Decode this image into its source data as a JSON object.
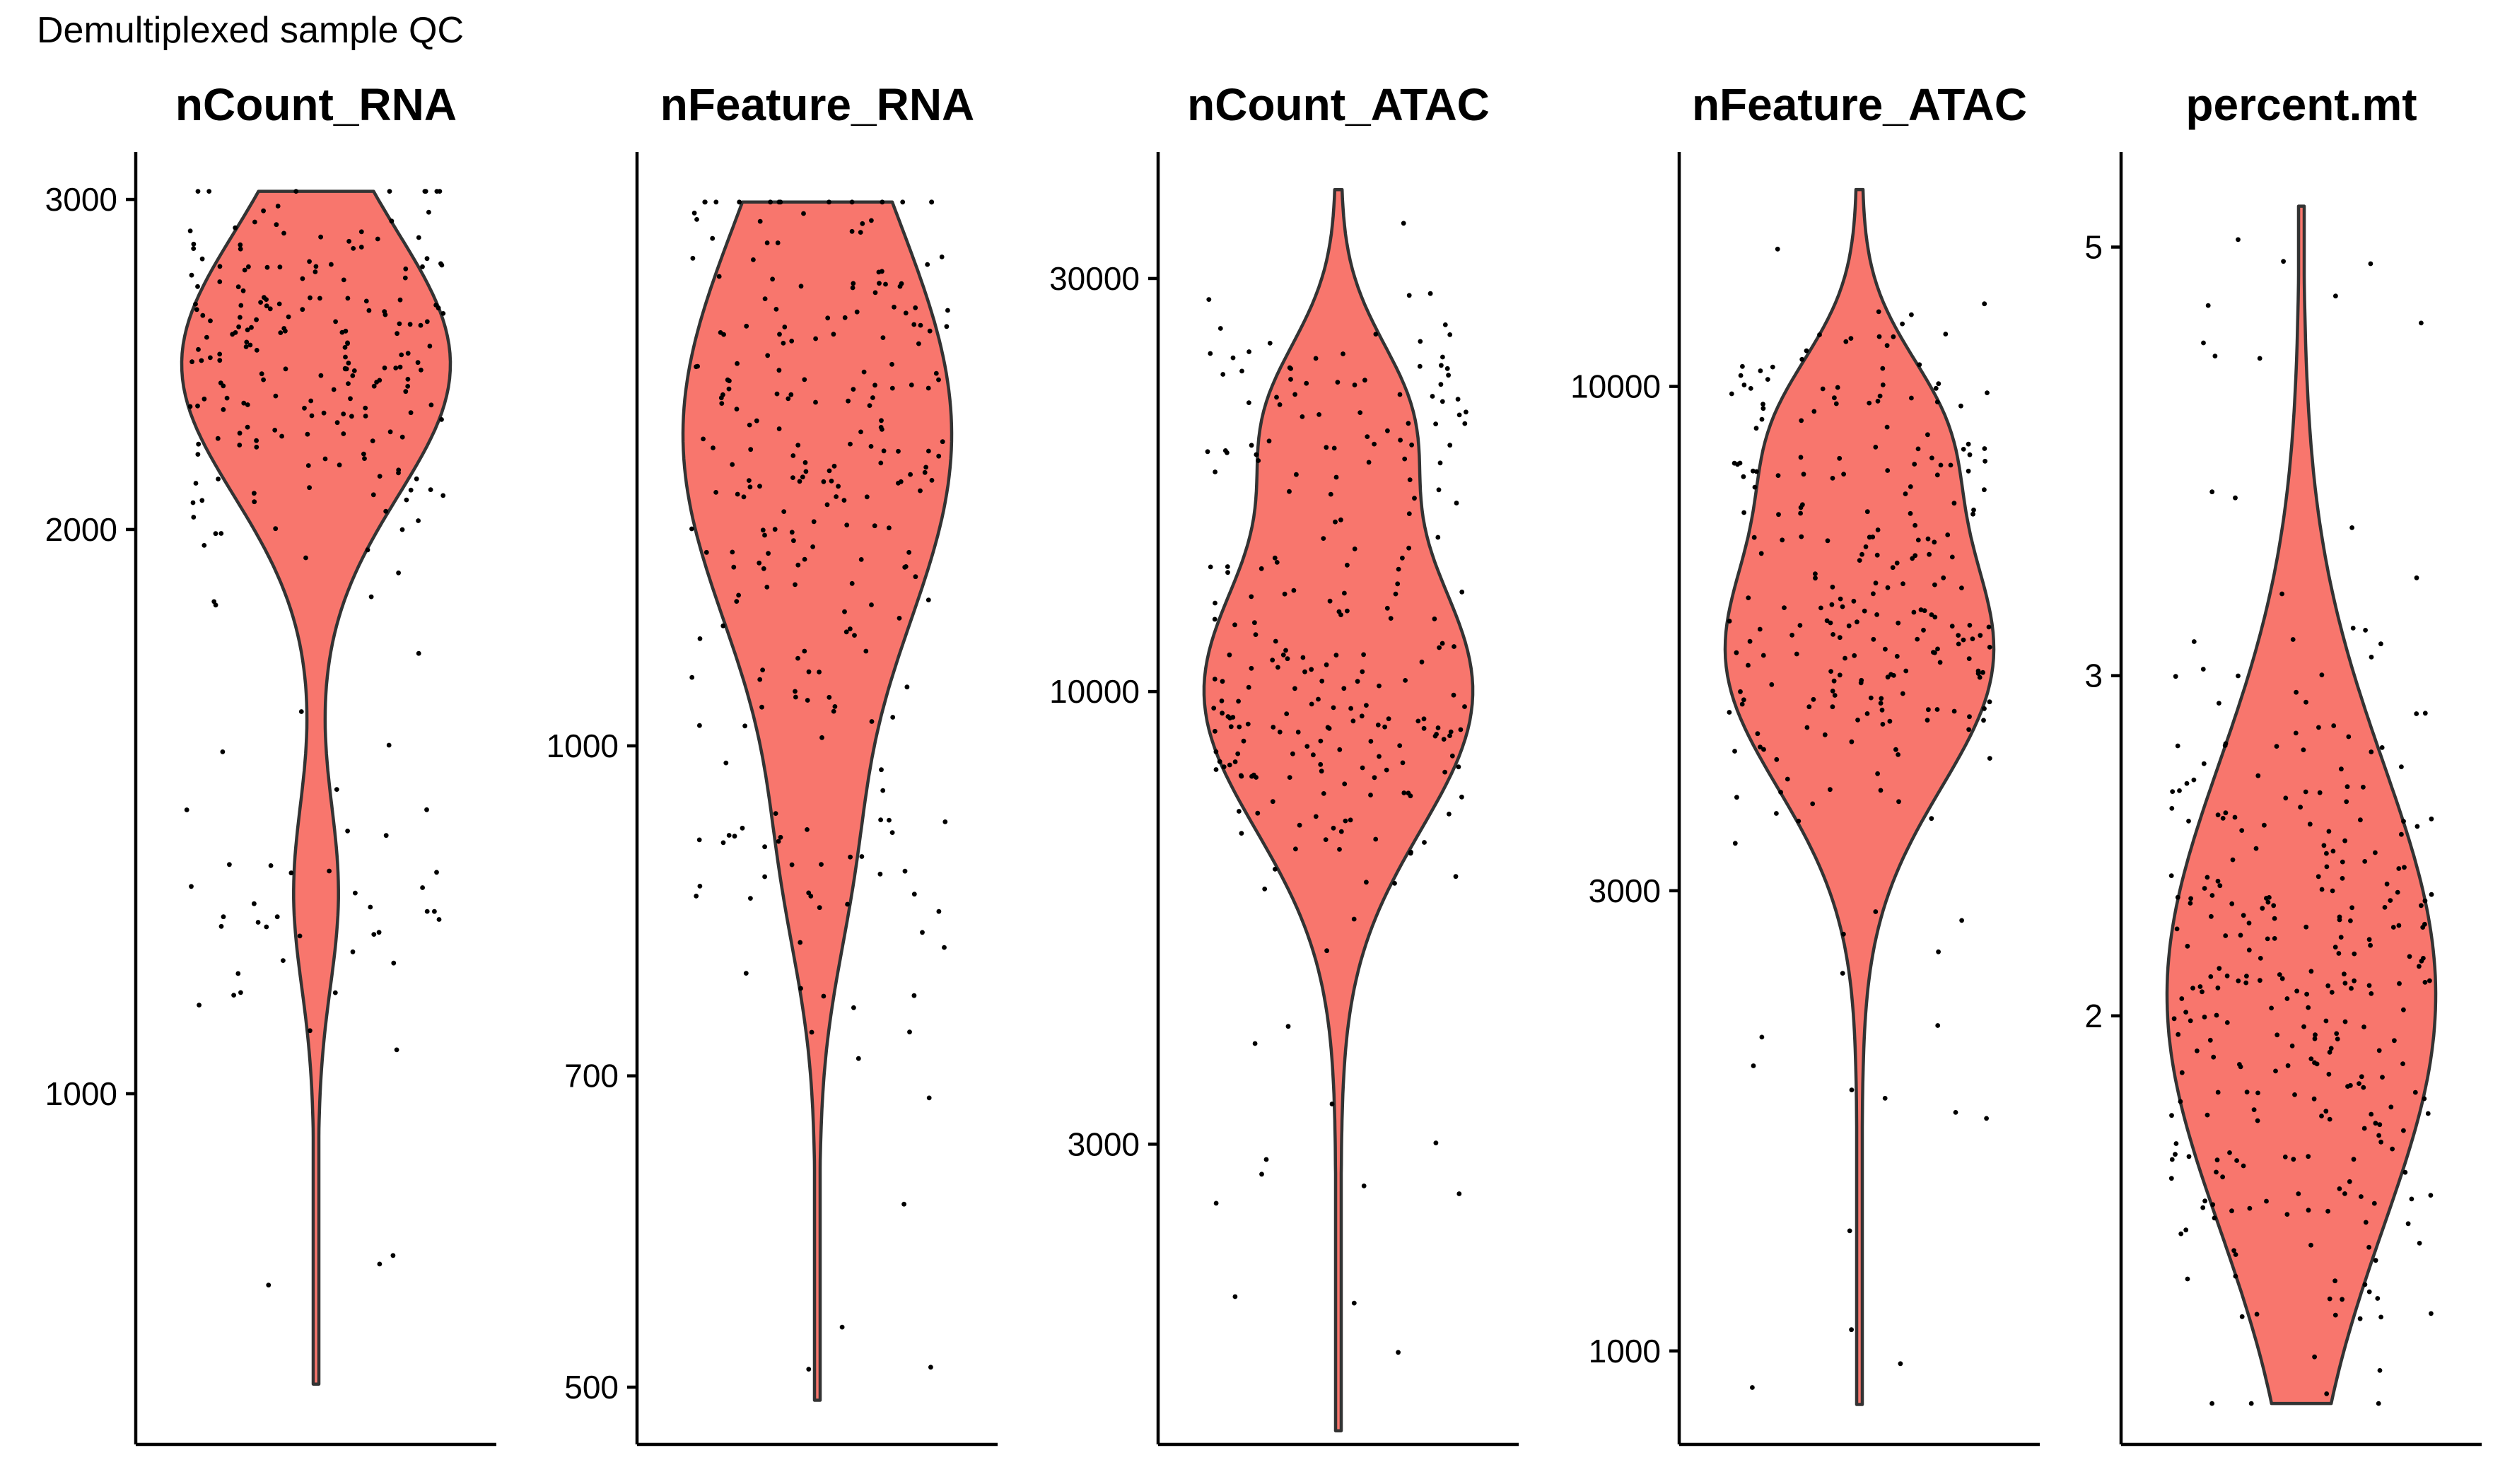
{
  "figure": {
    "title": "Demultiplexed sample QC",
    "violin_fill": "#F8766D",
    "violin_outline": "#333333",
    "point_color": "#000000"
  },
  "chart_data": [
    {
      "type": "violin",
      "title": "nCount_RNA",
      "scale": "log10",
      "ylim": [
        650,
        3180
      ],
      "data_range": [
        700,
        3030
      ],
      "yticks": [
        1000,
        2000,
        3000
      ],
      "ytick_labels": [
        "1000",
        "2000",
        "3000"
      ],
      "n_points": 250,
      "density_modes": [
        {
          "center": 2450,
          "weight": 0.78,
          "spread": 0.07
        }
      ],
      "tail_bulge": {
        "center": 1280,
        "weight": 0.12
      }
    },
    {
      "type": "violin",
      "title": "nFeature_RNA",
      "scale": "log10",
      "ylim": [
        470,
        1900
      ],
      "data_range": [
        493,
        1800
      ],
      "yticks": [
        500,
        700,
        1000
      ],
      "ytick_labels": [
        "500",
        "700",
        "1000"
      ],
      "n_points": 250,
      "density_modes": [
        {
          "center": 1400,
          "weight": 0.8,
          "spread": 0.1
        }
      ],
      "tail_bulge": {
        "center": 870,
        "weight": 0.12
      }
    },
    {
      "type": "violin",
      "title": "nCount_ATAC",
      "scale": "log10",
      "ylim": [
        1350,
        42000
      ],
      "data_range": [
        1400,
        38000
      ],
      "yticks": [
        3000,
        10000,
        30000
      ],
      "ytick_labels": [
        "3000",
        "10000",
        "30000"
      ],
      "n_points": 250,
      "density_modes": [
        {
          "center": 10000,
          "weight": 0.62,
          "spread": 0.16
        },
        {
          "center": 21000,
          "weight": 0.26,
          "spread": 0.09
        }
      ],
      "tail_bulge": null
    },
    {
      "type": "violin",
      "title": "nFeature_ATAC",
      "scale": "log10",
      "ylim": [
        800,
        17500
      ],
      "data_range": [
        880,
        16000
      ],
      "yticks": [
        1000,
        3000,
        10000
      ],
      "ytick_labels": [
        "1000",
        "3000",
        "10000"
      ],
      "n_points": 250,
      "density_modes": [
        {
          "center": 5300,
          "weight": 0.62,
          "spread": 0.14
        },
        {
          "center": 9200,
          "weight": 0.26,
          "spread": 0.08
        }
      ],
      "tail_bulge": null
    },
    {
      "type": "violin",
      "title": "percent.mt",
      "scale": "log10",
      "ylim": [
        1.2,
        5.6
      ],
      "data_range": [
        1.26,
        5.25
      ],
      "yticks": [
        2,
        3,
        5
      ],
      "ytick_labels": [
        "2",
        "3",
        "5"
      ],
      "n_points": 300,
      "density_modes": [
        {
          "center": 2.05,
          "weight": 0.92,
          "spread": 0.12
        }
      ],
      "tail_bulge": null
    }
  ]
}
